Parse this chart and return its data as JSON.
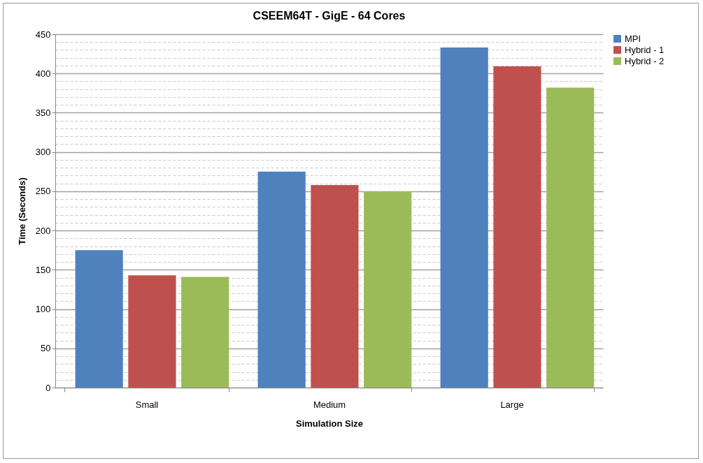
{
  "chart_data": {
    "type": "bar",
    "title": "CSEEM64T - GigE - 64 Cores",
    "xlabel": "Simulation Size",
    "ylabel": "Time (Seconds)",
    "categories": [
      "Small",
      "Medium",
      "Large"
    ],
    "series": [
      {
        "name": "MPI",
        "color": "#4f81bd",
        "values": [
          175,
          275,
          433
        ]
      },
      {
        "name": "Hybrid - 1",
        "color": "#c0504d",
        "values": [
          143,
          258,
          409
        ]
      },
      {
        "name": "Hybrid - 2",
        "color": "#9bbb59",
        "values": [
          141,
          250,
          382
        ]
      }
    ],
    "ylim": [
      0,
      450
    ],
    "yticks": [
      0,
      {
        "value": 10,
        "label": null
      },
      {
        "value": 20,
        "label": null
      },
      {
        "value": 30,
        "label": null
      },
      {
        "value": 40,
        "label": null
      },
      50,
      {
        "value": 60,
        "label": null
      },
      {
        "value": 70,
        "label": null
      },
      {
        "value": 80,
        "label": null
      },
      {
        "value": 90,
        "label": null
      },
      100,
      {
        "value": 110,
        "label": null
      },
      {
        "value": 120,
        "label": null
      },
      {
        "value": 130,
        "label": null
      },
      {
        "value": 140,
        "label": null
      },
      150,
      {
        "value": 160,
        "label": null
      },
      {
        "value": 170,
        "label": null
      },
      {
        "value": 180,
        "label": null
      },
      {
        "value": 190,
        "label": null
      },
      200,
      {
        "value": 210,
        "label": null
      },
      {
        "value": 220,
        "label": null
      },
      {
        "value": 230,
        "label": null
      },
      {
        "value": 240,
        "label": null
      },
      250,
      {
        "value": 260,
        "label": null
      },
      {
        "value": 270,
        "label": null
      },
      {
        "value": 280,
        "label": null
      },
      {
        "value": 290,
        "label": null
      },
      300,
      {
        "value": 310,
        "label": null
      },
      {
        "value": 320,
        "label": null
      },
      {
        "value": 330,
        "label": null
      },
      {
        "value": 340,
        "label": null
      },
      350,
      {
        "value": 360,
        "label": null
      },
      {
        "value": 370,
        "label": null
      },
      {
        "value": 380,
        "label": null
      },
      {
        "value": 390,
        "label": null
      },
      400,
      {
        "value": 410,
        "label": null
      },
      {
        "value": 420,
        "label": null
      },
      {
        "value": 430,
        "label": null
      },
      {
        "value": 440,
        "label": null
      },
      450
    ],
    "grid": "y",
    "legend": "right"
  }
}
